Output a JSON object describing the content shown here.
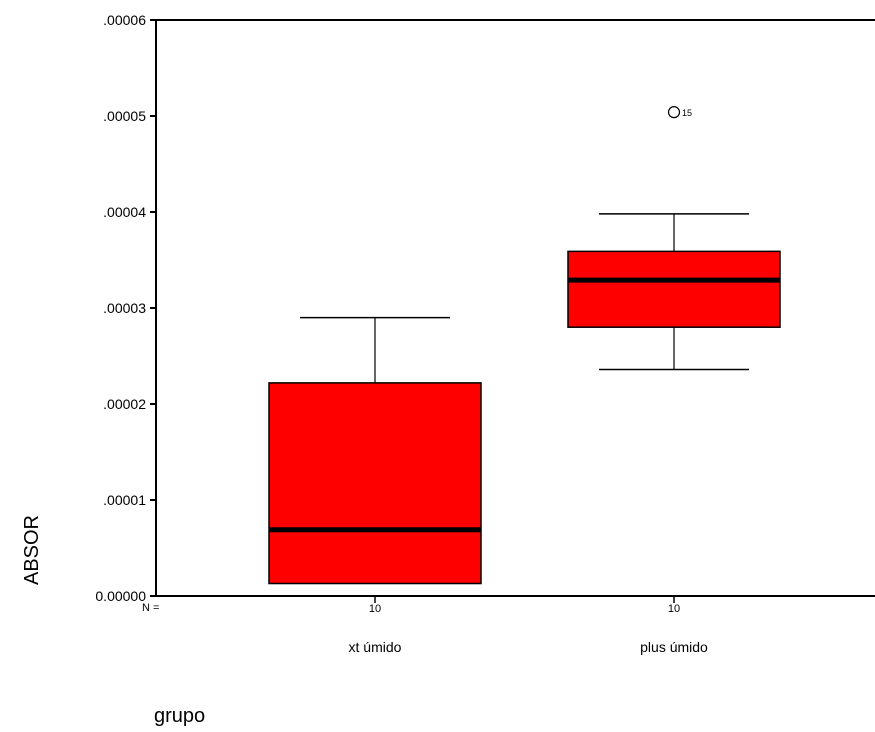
{
  "chart_data": {
    "type": "boxplot",
    "ylabel": "ABSOR",
    "xlabel": "grupo",
    "n_label": "N =",
    "ylim": [
      0,
      6e-05
    ],
    "yticks": [
      0,
      1e-05,
      2e-05,
      3e-05,
      4e-05,
      5e-05,
      6e-05
    ],
    "ytick_labels": [
      "0.00000",
      ".00001",
      ".00002",
      ".00003",
      ".00004",
      ".00005",
      ".00006"
    ],
    "grid": false,
    "box_color": "#ff0000",
    "groups": [
      {
        "category": "xt úmido",
        "n": "10",
        "whisker_low": 1.3e-06,
        "q1": 1.3e-06,
        "median": 6.9e-06,
        "q3": 2.22e-05,
        "whisker_high": 2.9e-05,
        "outliers": []
      },
      {
        "category": "plus úmido",
        "n": "10",
        "whisker_low": 2.36e-05,
        "q1": 2.8e-05,
        "median": 3.29e-05,
        "q3": 3.59e-05,
        "whisker_high": 3.98e-05,
        "outliers": [
          {
            "value": 5.04e-05,
            "label": "15"
          }
        ]
      }
    ]
  }
}
